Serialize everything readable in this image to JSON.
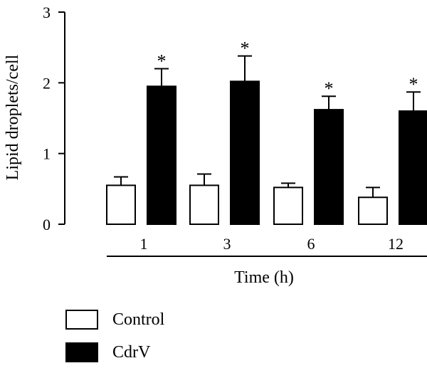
{
  "chart_data": {
    "type": "bar",
    "categories": [
      "1",
      "3",
      "6",
      "12"
    ],
    "series": [
      {
        "name": "Control",
        "values": [
          0.55,
          0.55,
          0.52,
          0.38
        ],
        "errors": [
          0.12,
          0.16,
          0.06,
          0.14
        ],
        "color": "#ffffff",
        "stroke": "#000000"
      },
      {
        "name": "CdrV",
        "values": [
          1.95,
          2.02,
          1.62,
          1.6
        ],
        "errors": [
          0.25,
          0.36,
          0.19,
          0.27
        ],
        "color": "#000000",
        "stroke": "#000000"
      }
    ],
    "significance": [
      "*",
      "*",
      "*",
      "*"
    ],
    "xlabel": "Time (h)",
    "ylabel": "Lipid droplets/cell",
    "ylim": [
      0,
      3
    ],
    "yticks": [
      "0",
      "1",
      "2",
      "3"
    ],
    "grid": false,
    "legend_position": "bottom-left"
  }
}
